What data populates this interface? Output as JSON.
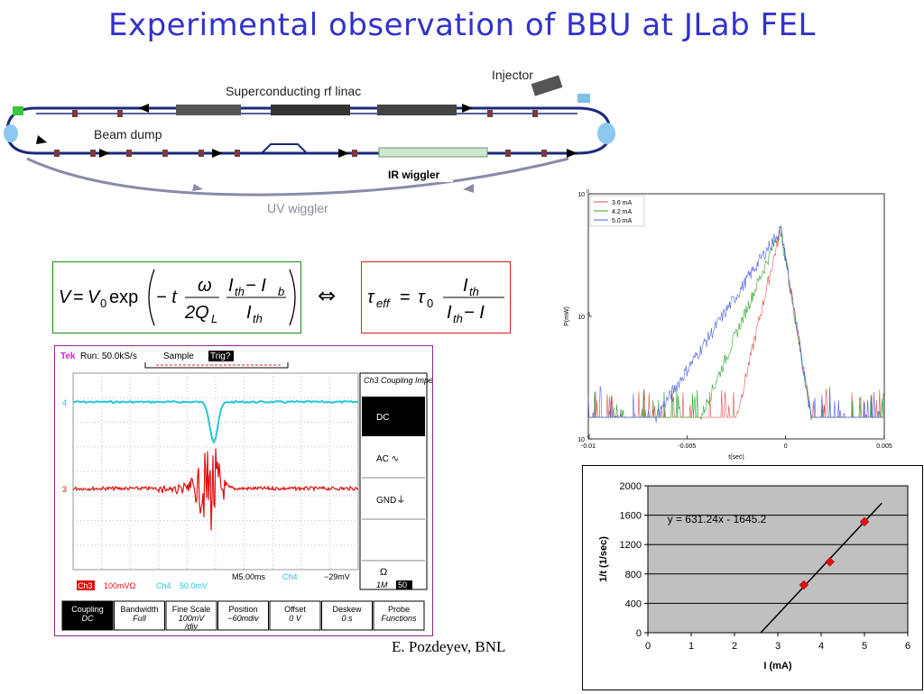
{
  "title": "Experimental observation of BBU at JLab FEL",
  "credit": "E. Pozdeyev, BNL",
  "lattice": {
    "injector": "Injector",
    "linac": "Superconducting rf linac",
    "beam_dump": "Beam dump",
    "ir_wiggler": "IR wiggler",
    "uv_wiggler": "UV wiggler"
  },
  "equations": {
    "eq1": {
      "lhs": "V",
      "eq": "=",
      "v0": "V",
      "v0_sub": "0",
      "exp": "exp",
      "minus_t": "− t",
      "omega": "ω",
      "two": "2Q",
      "two_sub": "L",
      "num_i": "I",
      "num_sub1": "th",
      "num_minus": " − I",
      "num_sub2": "b",
      "den_i": "I",
      "den_sub": "th"
    },
    "equiv": "⇔",
    "eq2": {
      "tau": "τ",
      "tau_sub": "eff",
      "eq": "=",
      "tau0": "τ",
      "tau0_sub": "0",
      "num": "I",
      "num_sub": "th",
      "den": "I",
      "den_sub": "th",
      "den_minus": " − I"
    }
  },
  "scope": {
    "header": {
      "brand": "Tek",
      "run": "Run: 50.0kS/s",
      "mode": "Sample",
      "trig": "Trig?"
    },
    "ch4_marker": "4",
    "ch3_marker": "3",
    "status": {
      "ch3": "Ch3",
      "ch3_scale": "100mVΩ",
      "ch4": "Ch4",
      "ch4_scale": "50.0mV",
      "time": "M5.00ms",
      "trig_ch": "Ch4",
      "trig_level": "−29mV"
    },
    "menu": {
      "title": "Ch3 Coupling Impedance",
      "items": [
        "DC",
        "AC ∿",
        "GND⏚",
        "",
        ""
      ],
      "omega": "Ω",
      "imp": "1M",
      "imp_val": "50"
    },
    "softkeys": [
      {
        "l1": "Coupling",
        "l2": "DC",
        "active": true
      },
      {
        "l1": "Bandwidth",
        "l2": "Full"
      },
      {
        "l1": "Fine Scale",
        "l2": "100mV",
        "l3": "/div"
      },
      {
        "l1": "Position",
        "l2": "−60mdiv"
      },
      {
        "l1": "Offset",
        "l2": "0 V"
      },
      {
        "l1": "Deskew",
        "l2": "0 s"
      },
      {
        "l1": "Probe",
        "l2": "Functions"
      }
    ],
    "colors": {
      "ch4": "#22c8d8",
      "ch3": "#e01010",
      "grid": "#bdbdbd"
    }
  },
  "chart_data": [
    {
      "type": "line",
      "title": "",
      "xlabel": "t(sec)",
      "ylabel": "P(mW)",
      "xlim": [
        -0.01,
        0.005
      ],
      "ylim": [
        0.01,
        1
      ],
      "yscale": "log",
      "xticks": [
        "-0.01",
        "-0.005",
        "0",
        "0.005"
      ],
      "yticks": [
        {
          "base": "10",
          "exp": "0"
        },
        {
          "base": "10",
          "exp": "-1"
        },
        {
          "base": "10",
          "exp": "-2"
        }
      ],
      "legend_position": "top-left",
      "series": [
        {
          "name": "3.6 mA",
          "color": "#e05050",
          "rise_start": -0.0025,
          "peak": [
            -0.00025,
            0.52
          ],
          "floor": 0.015
        },
        {
          "name": "4.2 mA",
          "color": "#30a030",
          "rise_start": -0.0043,
          "peak": [
            -0.00025,
            0.52
          ],
          "floor": 0.015
        },
        {
          "name": "5.0 mA",
          "color": "#5060e0",
          "rise_start": -0.0066,
          "peak": [
            -0.00025,
            0.52
          ],
          "floor": 0.015
        }
      ],
      "decay_end": 0.0013
    },
    {
      "type": "scatter",
      "title": "",
      "xlabel": "I (mA)",
      "ylabel": "1/t (1/sec)",
      "xlim": [
        0,
        6
      ],
      "ylim": [
        0,
        2000
      ],
      "xticks": [
        0,
        1,
        2,
        3,
        4,
        5,
        6
      ],
      "yticks": [
        0,
        400,
        800,
        1200,
        1600,
        2000
      ],
      "grid": true,
      "plot_bg": "#c0c0c0",
      "points": [
        {
          "x": 3.6,
          "y": 650
        },
        {
          "x": 4.2,
          "y": 965
        },
        {
          "x": 5.0,
          "y": 1510
        }
      ],
      "marker_color": "#e01010",
      "trendline": {
        "slope": 631.24,
        "intercept": -1645.2,
        "label": "y = 631.24x - 1645.2"
      }
    }
  ]
}
